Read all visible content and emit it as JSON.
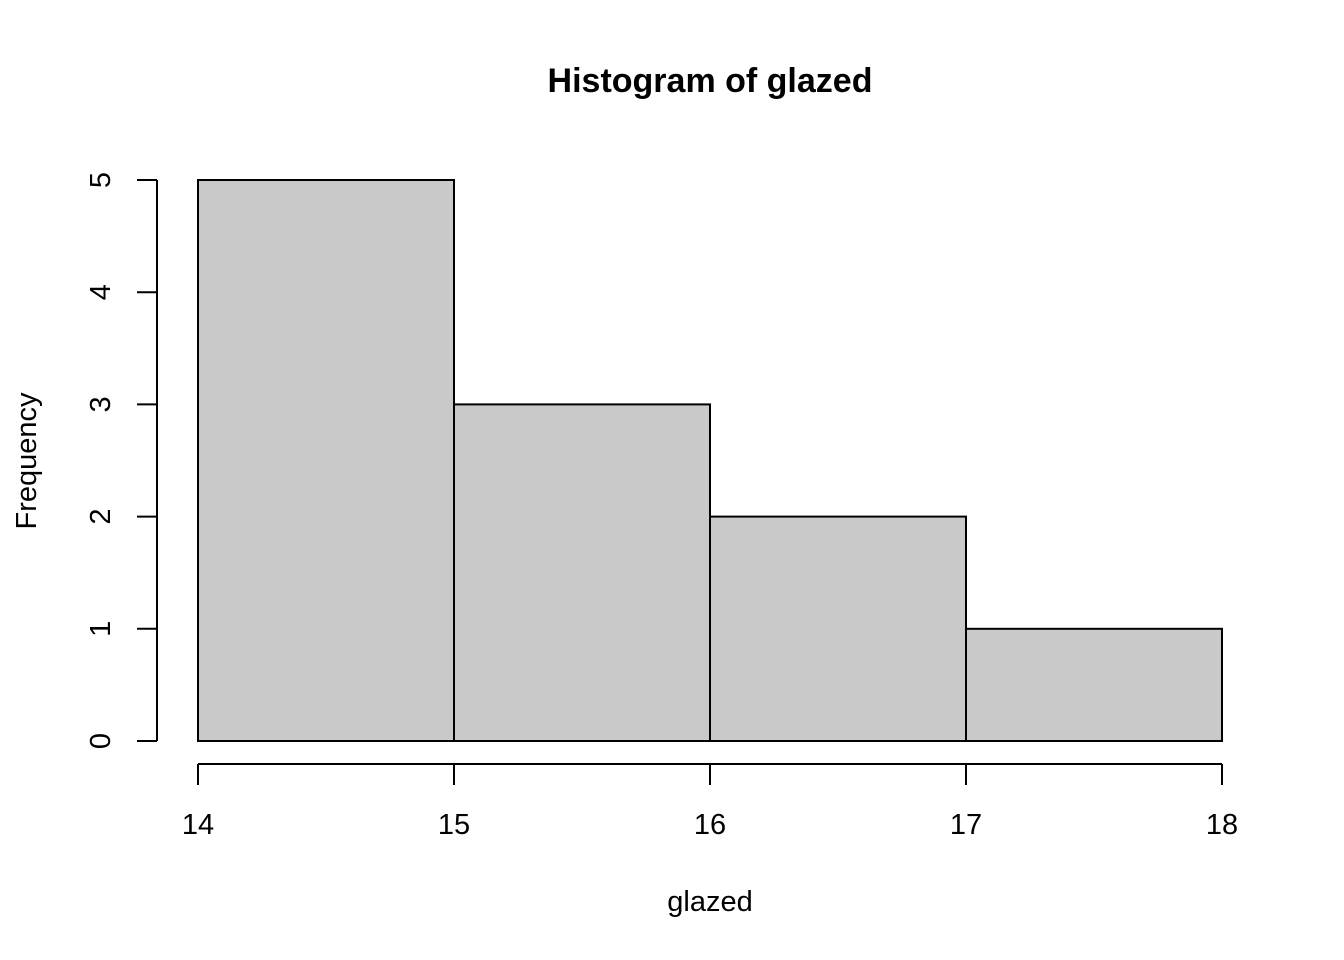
{
  "chart_data": {
    "type": "bar",
    "title": "Histogram of glazed",
    "xlabel": "glazed",
    "ylabel": "Frequency",
    "bins": [
      {
        "start": 14,
        "end": 15,
        "count": 5
      },
      {
        "start": 15,
        "end": 16,
        "count": 3
      },
      {
        "start": 16,
        "end": 17,
        "count": 2
      },
      {
        "start": 17,
        "end": 18,
        "count": 1
      }
    ],
    "xlim": [
      14,
      18
    ],
    "ylim": [
      0,
      5
    ],
    "x_ticks": [
      "14",
      "15",
      "16",
      "17",
      "18"
    ],
    "y_ticks": [
      "0",
      "1",
      "2",
      "3",
      "4",
      "5"
    ],
    "grid": false,
    "bar_color": "#c9c9c9",
    "edge_color": "#000000"
  }
}
